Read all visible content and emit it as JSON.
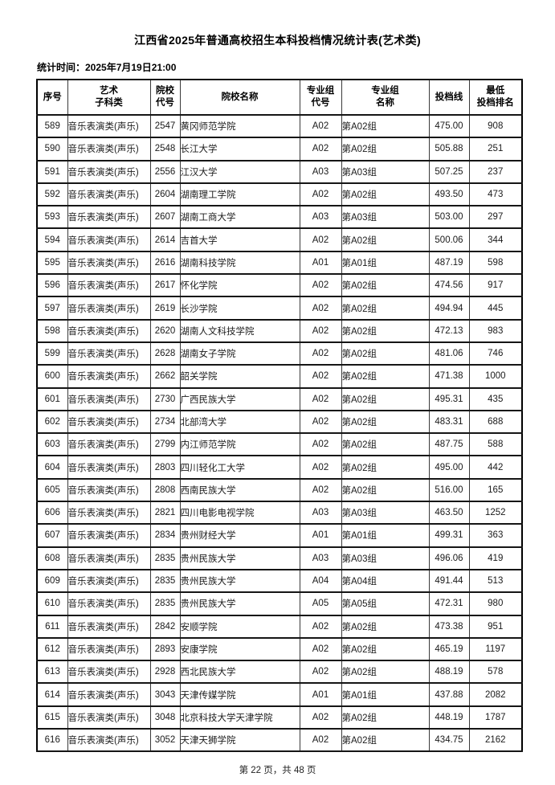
{
  "page": {
    "title": "江西省2025年普通高校招生本科投档情况统计表(艺术类)",
    "stat_time": "统计时间：2025年7月19日21:00",
    "footer": "第 22 页，共 48 页"
  },
  "table": {
    "headers": [
      "序号",
      "艺术\n子科类",
      "院校\n代号",
      "院校名称",
      "专业组\n代号",
      "专业组\n名称",
      "投档线",
      "最低\n投档排名"
    ],
    "rows": [
      [
        "589",
        "音乐表演类(声乐)",
        "2547",
        "黄冈师范学院",
        "A02",
        "第A02组",
        "475.00",
        "908"
      ],
      [
        "590",
        "音乐表演类(声乐)",
        "2548",
        "长江大学",
        "A02",
        "第A02组",
        "505.88",
        "251"
      ],
      [
        "591",
        "音乐表演类(声乐)",
        "2556",
        "江汉大学",
        "A03",
        "第A03组",
        "507.25",
        "237"
      ],
      [
        "592",
        "音乐表演类(声乐)",
        "2604",
        "湖南理工学院",
        "A02",
        "第A02组",
        "493.50",
        "473"
      ],
      [
        "593",
        "音乐表演类(声乐)",
        "2607",
        "湖南工商大学",
        "A03",
        "第A03组",
        "503.00",
        "297"
      ],
      [
        "594",
        "音乐表演类(声乐)",
        "2614",
        "吉首大学",
        "A02",
        "第A02组",
        "500.06",
        "344"
      ],
      [
        "595",
        "音乐表演类(声乐)",
        "2616",
        "湖南科技学院",
        "A01",
        "第A01组",
        "487.19",
        "598"
      ],
      [
        "596",
        "音乐表演类(声乐)",
        "2617",
        "怀化学院",
        "A02",
        "第A02组",
        "474.56",
        "917"
      ],
      [
        "597",
        "音乐表演类(声乐)",
        "2619",
        "长沙学院",
        "A02",
        "第A02组",
        "494.94",
        "445"
      ],
      [
        "598",
        "音乐表演类(声乐)",
        "2620",
        "湖南人文科技学院",
        "A02",
        "第A02组",
        "472.13",
        "983"
      ],
      [
        "599",
        "音乐表演类(声乐)",
        "2628",
        "湖南女子学院",
        "A02",
        "第A02组",
        "481.06",
        "746"
      ],
      [
        "600",
        "音乐表演类(声乐)",
        "2662",
        "韶关学院",
        "A02",
        "第A02组",
        "471.38",
        "1000"
      ],
      [
        "601",
        "音乐表演类(声乐)",
        "2730",
        "广西民族大学",
        "A02",
        "第A02组",
        "495.31",
        "435"
      ],
      [
        "602",
        "音乐表演类(声乐)",
        "2734",
        "北部湾大学",
        "A02",
        "第A02组",
        "483.31",
        "688"
      ],
      [
        "603",
        "音乐表演类(声乐)",
        "2799",
        "内江师范学院",
        "A02",
        "第A02组",
        "487.75",
        "588"
      ],
      [
        "604",
        "音乐表演类(声乐)",
        "2803",
        "四川轻化工大学",
        "A02",
        "第A02组",
        "495.00",
        "442"
      ],
      [
        "605",
        "音乐表演类(声乐)",
        "2808",
        "西南民族大学",
        "A02",
        "第A02组",
        "516.00",
        "165"
      ],
      [
        "606",
        "音乐表演类(声乐)",
        "2821",
        "四川电影电视学院",
        "A03",
        "第A03组",
        "463.50",
        "1252"
      ],
      [
        "607",
        "音乐表演类(声乐)",
        "2834",
        "贵州财经大学",
        "A01",
        "第A01组",
        "499.31",
        "363"
      ],
      [
        "608",
        "音乐表演类(声乐)",
        "2835",
        "贵州民族大学",
        "A03",
        "第A03组",
        "496.06",
        "419"
      ],
      [
        "609",
        "音乐表演类(声乐)",
        "2835",
        "贵州民族大学",
        "A04",
        "第A04组",
        "491.44",
        "513"
      ],
      [
        "610",
        "音乐表演类(声乐)",
        "2835",
        "贵州民族大学",
        "A05",
        "第A05组",
        "472.31",
        "980"
      ],
      [
        "611",
        "音乐表演类(声乐)",
        "2842",
        "安顺学院",
        "A02",
        "第A02组",
        "473.38",
        "951"
      ],
      [
        "612",
        "音乐表演类(声乐)",
        "2893",
        "安康学院",
        "A02",
        "第A02组",
        "465.19",
        "1197"
      ],
      [
        "613",
        "音乐表演类(声乐)",
        "2928",
        "西北民族大学",
        "A02",
        "第A02组",
        "488.19",
        "578"
      ],
      [
        "614",
        "音乐表演类(声乐)",
        "3043",
        "天津传媒学院",
        "A01",
        "第A01组",
        "437.88",
        "2082"
      ],
      [
        "615",
        "音乐表演类(声乐)",
        "3048",
        "北京科技大学天津学院",
        "A02",
        "第A02组",
        "448.19",
        "1787"
      ],
      [
        "616",
        "音乐表演类(声乐)",
        "3052",
        "天津天狮学院",
        "A02",
        "第A02组",
        "434.75",
        "2162"
      ]
    ]
  }
}
